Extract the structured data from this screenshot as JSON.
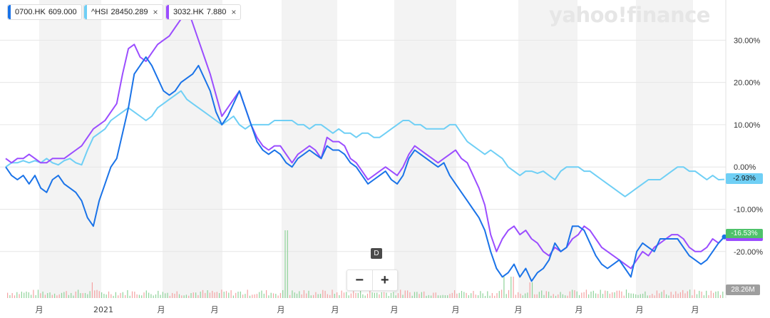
{
  "legend": [
    {
      "symbol": "0700.HK",
      "value": "609.000",
      "color": "#1a73e8"
    },
    {
      "symbol": "^HSI",
      "value": "28450.289",
      "color": "#6fcff5"
    },
    {
      "symbol": "3032.HK",
      "value": "7.880",
      "color": "#9b4dff"
    }
  ],
  "close_glyph": "×",
  "logo_text": "yahoo!finance",
  "zoom": {
    "minus": "−",
    "plus": "+"
  },
  "event_marker": "D",
  "volume_badge": "28.26M",
  "last_values": {
    "hsi": "-2.93%",
    "s0700": "-16.53%"
  },
  "badge_colors": {
    "hsi": "#6fcff5",
    "s0700": "#4ec26a",
    "s3032": "#9b4dff",
    "volume": "#9e9e9e"
  },
  "chart_data": {
    "type": "line",
    "y_axis": {
      "unit": "%",
      "min": -31.0,
      "max": 39.5,
      "ticks": [
        30,
        20,
        10,
        0,
        -10,
        -20
      ],
      "tick_labels": [
        "30.00%",
        "20.00%",
        "10.00%",
        "0.00%",
        "-10.00%",
        "-20.00%"
      ]
    },
    "x_axis": {
      "tick_labels": [
        "月",
        "2021",
        "月",
        "月",
        "月",
        "月",
        "月",
        "月",
        "月",
        "月",
        "月",
        "月",
        "月"
      ]
    },
    "series": [
      {
        "key": "0700",
        "name": "0700.HK",
        "color": "#1a73e8",
        "values": [
          0,
          -2,
          -3,
          -2,
          -4,
          -2,
          -5,
          -6,
          -3,
          -2,
          -4,
          -5,
          -6,
          -8,
          -12,
          -14,
          -8,
          -4,
          0,
          2,
          8,
          14,
          22,
          24,
          26,
          24,
          21,
          18,
          17,
          18,
          20,
          21,
          22,
          24,
          21,
          18,
          13,
          10,
          12,
          15,
          18,
          14,
          10,
          6,
          4,
          3,
          4,
          3,
          1,
          0,
          2,
          3,
          4,
          3,
          2,
          5,
          4,
          4,
          3,
          1,
          0,
          -2,
          -4,
          -3,
          -2,
          -1,
          -3,
          -4,
          -2,
          2,
          4,
          3,
          2,
          1,
          0,
          1,
          -2,
          -4,
          -6,
          -8,
          -10,
          -12,
          -15,
          -20,
          -24,
          -26,
          -25,
          -23,
          -26,
          -24,
          -27,
          -25,
          -24,
          -22,
          -18,
          -20,
          -19,
          -14,
          -14,
          -15,
          -18,
          -21,
          -23,
          -24,
          -23,
          -22,
          -24,
          -26,
          -20,
          -18,
          -19,
          -20,
          -17,
          -17,
          -17,
          -17,
          -19,
          -21,
          -22,
          -23,
          -22,
          -20,
          -18,
          -16.53
        ]
      },
      {
        "key": "hsi",
        "name": "^HSI",
        "color": "#6fcff5",
        "values": [
          0,
          1,
          1,
          1.5,
          1,
          1.5,
          1,
          2,
          1,
          0.5,
          1.5,
          2,
          1,
          0.5,
          4,
          7,
          8,
          9,
          11,
          12,
          13,
          14,
          13,
          12,
          11,
          12,
          14,
          15,
          16,
          17,
          18,
          16,
          15,
          14,
          13,
          12,
          11,
          10,
          11,
          12,
          10,
          9,
          10,
          10,
          10,
          10,
          11,
          11,
          11,
          11,
          10,
          10,
          9,
          10,
          10,
          9,
          8,
          9,
          8,
          8,
          7,
          8,
          8,
          7,
          7,
          8,
          9,
          10,
          11,
          11,
          10,
          10,
          9,
          9,
          9,
          9,
          10,
          10,
          8,
          6,
          5,
          4,
          3,
          4,
          3,
          2,
          0,
          -1,
          -2,
          -1,
          -1,
          -1.5,
          -1,
          -2,
          -3,
          -1,
          0,
          0,
          0,
          -1,
          -1,
          -2,
          -3,
          -4,
          -5,
          -6,
          -7,
          -6,
          -5,
          -4,
          -3,
          -3,
          -3,
          -2,
          -1,
          0,
          0,
          -1,
          -1,
          -2,
          -3,
          -2,
          -3,
          -2.93
        ]
      },
      {
        "key": "3032",
        "name": "3032.HK",
        "color": "#9b4dff",
        "values": [
          2,
          1,
          2,
          2,
          3,
          2,
          1,
          1,
          2,
          2,
          2,
          3,
          4,
          5,
          7,
          9,
          10,
          11,
          13,
          15,
          22,
          28,
          29,
          26,
          25,
          27,
          29,
          30,
          31,
          33,
          35,
          38,
          34,
          30,
          26,
          22,
          17,
          12,
          14,
          16,
          18,
          14,
          10,
          7,
          5,
          4,
          5,
          5,
          3,
          1,
          3,
          4,
          5,
          4,
          2,
          7,
          6,
          6,
          5,
          2,
          1,
          -1,
          -3,
          -2,
          -1,
          0,
          -1,
          -2,
          0,
          3,
          5,
          4,
          3,
          2,
          1,
          2,
          3,
          4,
          2,
          1,
          -2,
          -5,
          -9,
          -16,
          -20,
          -17,
          -15,
          -14,
          -16,
          -15,
          -17,
          -18,
          -20,
          -21,
          -19,
          -20,
          -19,
          -17,
          -16,
          -14,
          -15,
          -17,
          -19,
          -20,
          -21,
          -22,
          -23,
          -24,
          -22,
          -20,
          -21,
          -19,
          -18,
          -17,
          -16,
          -16,
          -17,
          -19,
          -20,
          -20,
          -19,
          -17,
          -18,
          -16.53
        ]
      }
    ]
  }
}
